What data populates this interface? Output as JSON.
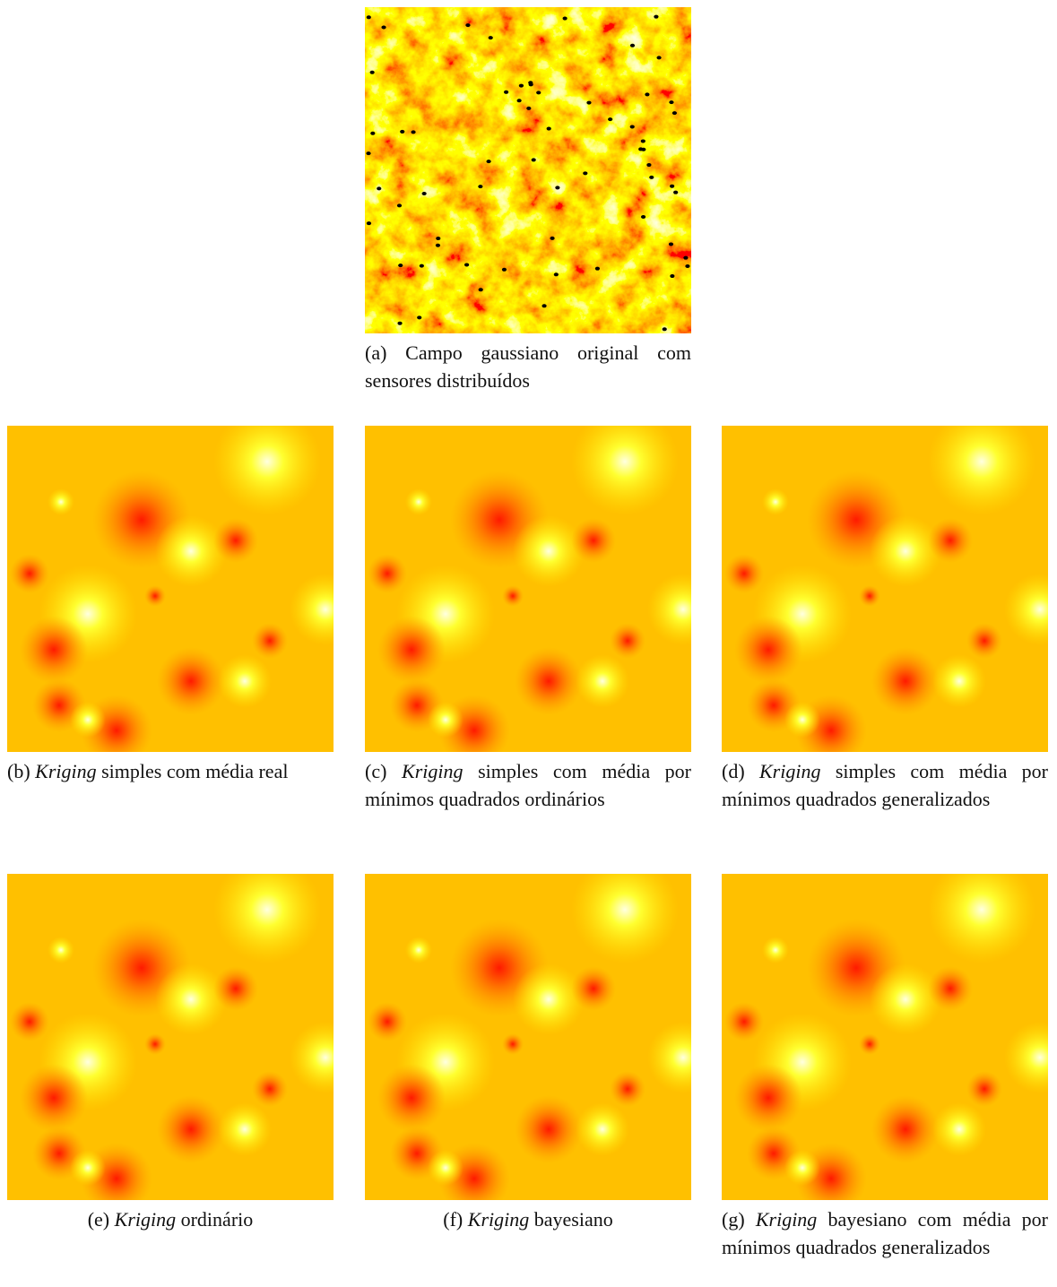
{
  "figures": [
    {
      "label": "(a)",
      "text": "Campo gaussiano original com sensores distribuídos"
    },
    {
      "label": "(b)",
      "emph": "Kriging",
      "text": "simples com média real"
    },
    {
      "label": "(c)",
      "emph": "Kriging",
      "text": "simples com média por mínimos quadrados ordinários"
    },
    {
      "label": "(d)",
      "emph": "Kriging",
      "text": "simples com média por mínimos quadrados generalizados"
    },
    {
      "label": "(e)",
      "emph": "Kriging",
      "text": "ordinário"
    },
    {
      "label": "(f)",
      "emph": "Kriging",
      "text": "bayesiano"
    },
    {
      "label": "(g)",
      "emph": "Kriging",
      "text": "bayesiano com média por mínimos quadrados generalizados"
    }
  ]
}
